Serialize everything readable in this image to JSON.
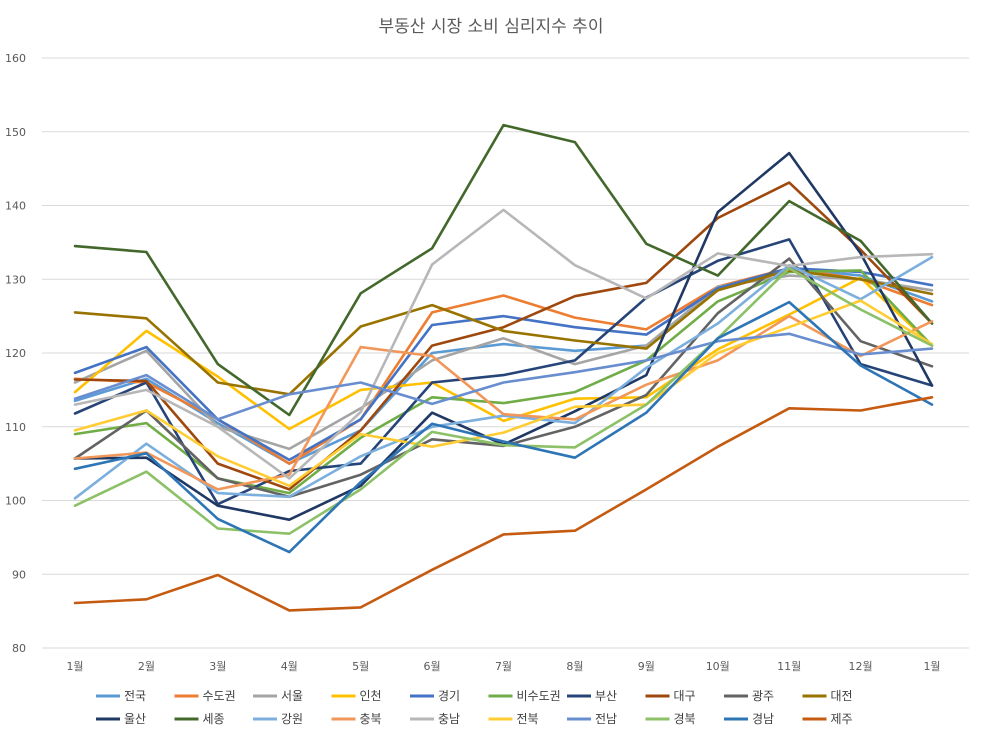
{
  "chart_data": {
    "type": "line",
    "title": "부동산 시장 소비 심리지수 추이",
    "xlabel": "",
    "ylabel": "",
    "categories": [
      "1월",
      "2월",
      "3월",
      "4월",
      "5월",
      "6월",
      "7월",
      "8월",
      "9월",
      "10월",
      "11월",
      "12월",
      "1월"
    ],
    "ylim": [
      80,
      160
    ],
    "yticks": [
      80,
      90,
      100,
      110,
      120,
      130,
      140,
      150,
      160
    ],
    "grid": true,
    "legend_position": "bottom",
    "series": [
      {
        "name": "전국",
        "color": "#5B9BD5",
        "values": [
          113.5,
          116.5,
          110.5,
          105.0,
          109.5,
          120.0,
          121.2,
          120.3,
          121.0,
          128.5,
          131.5,
          130.5,
          127.0
        ]
      },
      {
        "name": "수도권",
        "color": "#ED7D31",
        "values": [
          116.5,
          116.0,
          111.0,
          105.0,
          111.0,
          125.5,
          127.8,
          124.8,
          123.2,
          129.0,
          131.5,
          130.0,
          126.5
        ]
      },
      {
        "name": "서울",
        "color": "#A5A5A5",
        "values": [
          116.0,
          120.3,
          110.0,
          107.0,
          112.5,
          119.0,
          122.0,
          118.5,
          121.0,
          129.0,
          130.5,
          130.0,
          128.5
        ]
      },
      {
        "name": "인천",
        "color": "#FFC000",
        "values": [
          114.7,
          123.0,
          116.8,
          109.7,
          115.0,
          116.0,
          110.8,
          113.8,
          114.0,
          120.5,
          125.2,
          130.2,
          121.0
        ]
      },
      {
        "name": "경기",
        "color": "#4472C4",
        "values": [
          117.3,
          120.8,
          111.0,
          105.5,
          111.0,
          123.8,
          125.0,
          123.5,
          122.5,
          128.8,
          131.5,
          131.0,
          129.2
        ]
      },
      {
        "name": "비수도권",
        "color": "#70AD47",
        "values": [
          109.0,
          110.5,
          103.0,
          101.0,
          108.5,
          114.0,
          113.2,
          114.7,
          119.0,
          127.0,
          131.0,
          131.2,
          121.0
        ]
      },
      {
        "name": "부산",
        "color": "#264478",
        "values": [
          111.8,
          116.0,
          99.5,
          104.0,
          105.0,
          116.0,
          117.0,
          119.0,
          127.5,
          132.5,
          135.4,
          118.5,
          115.6
        ]
      },
      {
        "name": "대구",
        "color": "#9E480E",
        "values": [
          116.4,
          116.2,
          105.0,
          101.5,
          109.5,
          121.0,
          123.5,
          127.7,
          129.5,
          138.3,
          143.1,
          134.0,
          124.0
        ]
      },
      {
        "name": "광주",
        "color": "#636363",
        "values": [
          105.7,
          112.2,
          103.0,
          100.5,
          103.5,
          108.3,
          107.4,
          110.0,
          114.3,
          125.4,
          132.8,
          121.6,
          118.2
        ]
      },
      {
        "name": "대전",
        "color": "#997300",
        "values": [
          125.5,
          124.7,
          116.0,
          114.4,
          123.6,
          126.5,
          123.0,
          121.7,
          120.6,
          128.5,
          131.2,
          130.0,
          128.0
        ]
      },
      {
        "name": "울산",
        "color": "#203864",
        "values": [
          105.7,
          105.8,
          99.3,
          97.4,
          102.0,
          111.9,
          107.6,
          112.1,
          117.0,
          139.1,
          147.1,
          133.5,
          115.6
        ]
      },
      {
        "name": "세종",
        "color": "#43682B",
        "values": [
          134.5,
          133.7,
          118.5,
          111.6,
          128.1,
          134.2,
          150.9,
          148.6,
          134.8,
          130.5,
          140.6,
          135.2,
          124.0
        ]
      },
      {
        "name": "강원",
        "color": "#7CAFDD",
        "values": [
          100.3,
          107.7,
          101.0,
          100.5,
          106.0,
          110.0,
          111.5,
          110.5,
          118.0,
          124.0,
          131.9,
          127.3,
          133.0
        ]
      },
      {
        "name": "충북",
        "color": "#F1975A",
        "values": [
          105.7,
          106.5,
          101.5,
          103.5,
          120.8,
          119.6,
          111.7,
          111.0,
          115.7,
          119.0,
          125.0,
          119.6,
          124.3
        ]
      },
      {
        "name": "충남",
        "color": "#B7B7B7",
        "values": [
          113.0,
          115.0,
          110.0,
          103.0,
          112.0,
          132.0,
          139.4,
          131.9,
          127.4,
          133.5,
          131.8,
          133.0,
          133.4
        ]
      },
      {
        "name": "전북",
        "color": "#FFCD33",
        "values": [
          109.5,
          112.2,
          106.0,
          102.0,
          109.0,
          107.3,
          109.2,
          112.7,
          113.0,
          120.0,
          123.5,
          127.1,
          121.2
        ]
      },
      {
        "name": "전남",
        "color": "#698ED0",
        "values": [
          113.8,
          117.0,
          111.0,
          114.4,
          116.0,
          113.1,
          116.0,
          117.4,
          119.0,
          121.6,
          122.6,
          119.8,
          120.6
        ]
      },
      {
        "name": "경북",
        "color": "#8CC168",
        "values": [
          99.3,
          103.9,
          96.2,
          95.5,
          101.5,
          109.3,
          107.5,
          107.2,
          113.0,
          122.0,
          131.5,
          125.9,
          121.0
        ]
      },
      {
        "name": "경남",
        "color": "#2E75B6",
        "values": [
          104.3,
          106.4,
          97.5,
          93.0,
          102.5,
          110.4,
          108.0,
          105.8,
          111.9,
          122.0,
          126.9,
          118.3,
          113.0
        ]
      },
      {
        "name": "제주",
        "color": "#C55A11",
        "values": [
          86.1,
          86.6,
          89.9,
          85.1,
          85.5,
          90.6,
          95.4,
          95.9,
          101.5,
          107.3,
          112.5,
          112.2,
          114.0
        ]
      }
    ]
  }
}
